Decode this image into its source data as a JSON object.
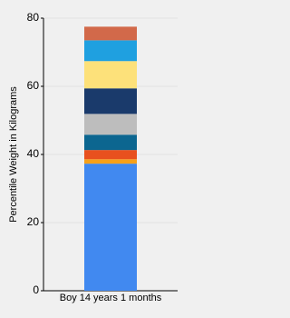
{
  "chart_data": {
    "type": "stacked_bar",
    "y_label": "Percentile Weight in Kilograms",
    "categories": [
      "Boy 14 years 1 months"
    ],
    "series": [
      {
        "color": "#4189f0",
        "values": [
          37.3
        ]
      },
      {
        "color": "#f7a11a",
        "values": [
          1.3
        ]
      },
      {
        "color": "#e8501e",
        "values": [
          2.7
        ]
      },
      {
        "color": "#0c6690",
        "values": [
          4.5
        ]
      },
      {
        "color": "#bdbdbd",
        "values": [
          6.1
        ]
      },
      {
        "color": "#1a3a6b",
        "values": [
          7.5
        ]
      },
      {
        "color": "#fde17a",
        "values": [
          8
        ]
      },
      {
        "color": "#1fa0e0",
        "values": [
          6.1
        ]
      },
      {
        "color": "#d2694a",
        "values": [
          4
        ]
      }
    ],
    "ylim": [
      0,
      80
    ],
    "yticks": [
      0,
      20,
      40,
      60,
      80
    ],
    "grid": true
  }
}
